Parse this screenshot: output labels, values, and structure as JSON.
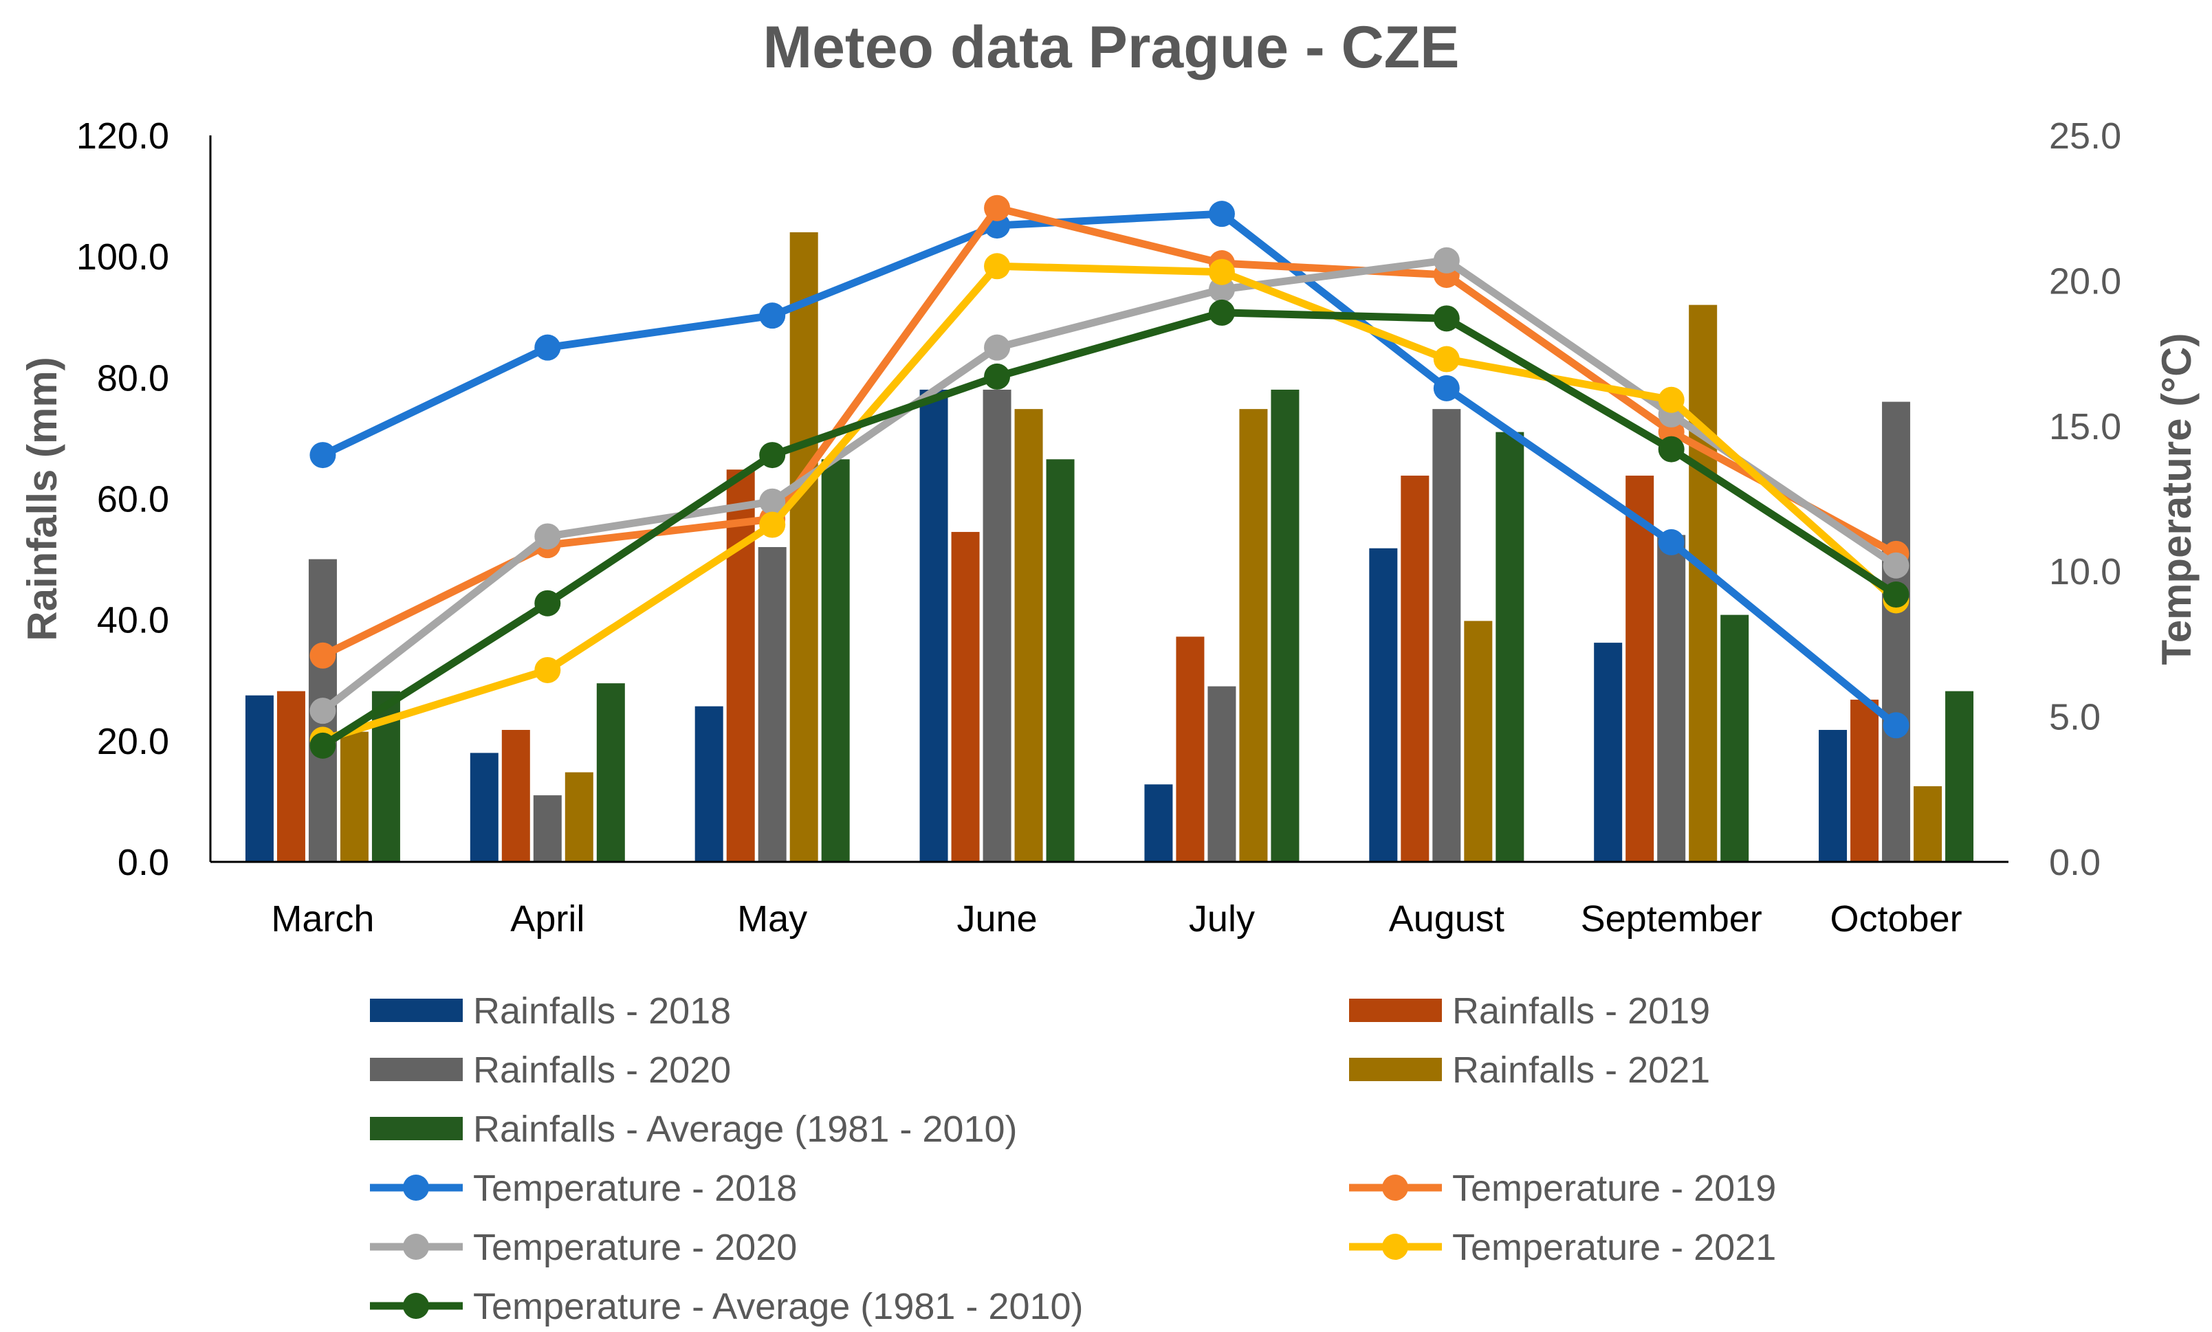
{
  "chart_data": {
    "type": "bar",
    "title": "Meteo data Prague - CZE",
    "categories": [
      "March",
      "April",
      "May",
      "June",
      "July",
      "August",
      "September",
      "October"
    ],
    "ylabel": "Rainfalls (mm)",
    "ylim": [
      0,
      120
    ],
    "yticks": [
      "0.0",
      "20.0",
      "40.0",
      "60.0",
      "80.0",
      "100.0",
      "120.0"
    ],
    "y2label": "Temperature (°C)",
    "y2lim": [
      0,
      25
    ],
    "y2ticks": [
      "0.0",
      "5.0",
      "10.0",
      "15.0",
      "20.0",
      "25.0"
    ],
    "legend_position": "bottom",
    "bar_series": [
      {
        "name": "Rainfalls  - 2018",
        "color": "#0a3f7a",
        "values": [
          27.5,
          18,
          25.7,
          78,
          12.8,
          51.8,
          36.2,
          21.8
        ]
      },
      {
        "name": "Rainfalls  - 2019",
        "color": "#b5450a",
        "values": [
          28.2,
          21.8,
          64.8,
          54.5,
          37.2,
          63.8,
          63.8,
          26.8
        ]
      },
      {
        "name": "Rainfalls  - 2020",
        "color": "#636363",
        "values": [
          50,
          11,
          52,
          78,
          29,
          74.8,
          54,
          76
        ]
      },
      {
        "name": "Rainfalls  - 2021",
        "color": "#9e7100",
        "values": [
          21.5,
          14.8,
          104,
          74.8,
          74.8,
          39.8,
          92,
          12.5
        ]
      },
      {
        "name": "Rainfalls  - Average (1981 - 2010)",
        "color": "#245a1f",
        "values": [
          28.2,
          29.5,
          66.5,
          66.5,
          78,
          71,
          40.8,
          28.2
        ]
      }
    ],
    "line_series": [
      {
        "name": "Temperature  - 2018",
        "color": "#1f76d2",
        "values": [
          14,
          17.7,
          18.8,
          21.9,
          22.3,
          16.3,
          11,
          4.7
        ]
      },
      {
        "name": "Temperature  - 2019",
        "color": "#f47c2c",
        "values": [
          7.1,
          10.9,
          11.8,
          22.5,
          20.6,
          20.2,
          14.8,
          10.6
        ]
      },
      {
        "name": "Temperature  - 2020",
        "color": "#a6a6a6",
        "values": [
          5.2,
          11.2,
          12.4,
          17.7,
          19.7,
          20.7,
          15.4,
          10.2
        ]
      },
      {
        "name": "Temperature  - 2021",
        "color": "#ffc000",
        "values": [
          4.2,
          6.6,
          11.6,
          20.5,
          20.3,
          17.3,
          15.9,
          9
        ]
      },
      {
        "name": "Temperature  - Average (1981 - 2010)",
        "color": "#215d18",
        "values": [
          4,
          8.9,
          14,
          16.7,
          18.9,
          18.7,
          14.2,
          9.2
        ]
      }
    ]
  }
}
